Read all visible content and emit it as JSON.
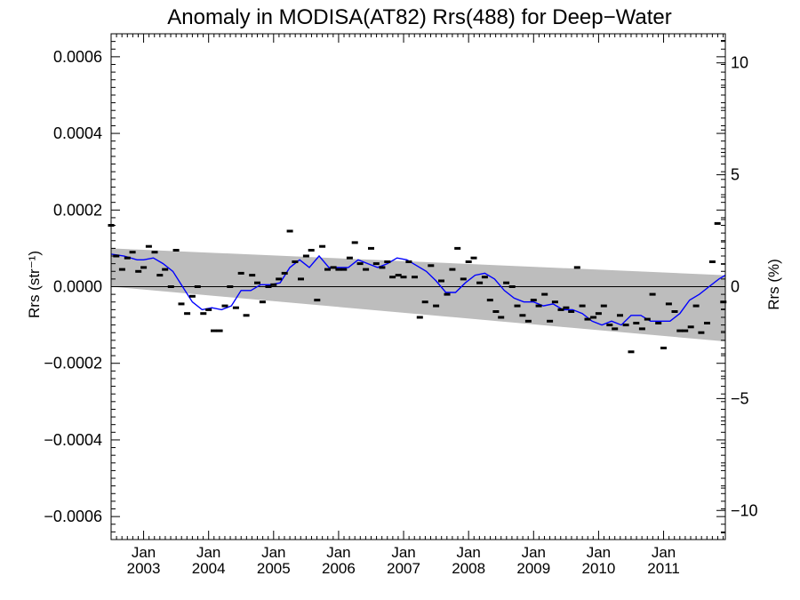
{
  "chart_data": {
    "type": "scatter",
    "title": "Anomaly in MODISA(AT82) Rrs(488) for Deep−Water",
    "ylabel_left": "Rrs (str⁻¹)",
    "ylabel_right": "Rrs (%)",
    "xlim": [
      2002.5,
      2011.95
    ],
    "ylim_left": [
      -0.00066,
      0.00066
    ],
    "ylim_right": [
      -11.3,
      11.3
    ],
    "y_ticks_left": [
      {
        "value": -0.0006,
        "label": "−0.0006"
      },
      {
        "value": -0.0004,
        "label": "−0.0004"
      },
      {
        "value": -0.0002,
        "label": "−0.0002"
      },
      {
        "value": 0.0,
        "label": "0.0000"
      },
      {
        "value": 0.0002,
        "label": "0.0002"
      },
      {
        "value": 0.0004,
        "label": "0.0004"
      },
      {
        "value": 0.0006,
        "label": "0.0006"
      }
    ],
    "y_ticks_right": [
      {
        "value": -10,
        "label": "−10"
      },
      {
        "value": -5,
        "label": "−5"
      },
      {
        "value": 0,
        "label": "0"
      },
      {
        "value": 5,
        "label": "5"
      },
      {
        "value": 10,
        "label": "10"
      }
    ],
    "x_ticks": [
      {
        "value": 2003.0,
        "month": "Jan",
        "year": "2003"
      },
      {
        "value": 2004.0,
        "month": "Jan",
        "year": "2004"
      },
      {
        "value": 2005.0,
        "month": "Jan",
        "year": "2005"
      },
      {
        "value": 2006.0,
        "month": "Jan",
        "year": "2006"
      },
      {
        "value": 2007.0,
        "month": "Jan",
        "year": "2007"
      },
      {
        "value": 2008.0,
        "month": "Jan",
        "year": "2008"
      },
      {
        "value": 2009.0,
        "month": "Jan",
        "year": "2009"
      },
      {
        "value": 2010.0,
        "month": "Jan",
        "year": "2010"
      },
      {
        "value": 2011.0,
        "month": "Jan",
        "year": "2011"
      }
    ],
    "band": {
      "x": [
        2002.5,
        2011.95
      ],
      "upper": [
        0.0001,
        3e-05
      ],
      "lower": [
        0.0,
        -0.000143
      ]
    },
    "zero_line": 0.0,
    "series": [
      {
        "role": "monthly anomalies",
        "color": "#000000",
        "marker": "dash",
        "x": [
          2002.5,
          2002.58,
          2002.67,
          2002.75,
          2002.83,
          2002.92,
          2003.0,
          2003.08,
          2003.17,
          2003.25,
          2003.33,
          2003.42,
          2003.5,
          2003.58,
          2003.67,
          2003.75,
          2003.83,
          2003.92,
          2004.0,
          2004.08,
          2004.17,
          2004.25,
          2004.33,
          2004.42,
          2004.5,
          2004.58,
          2004.67,
          2004.75,
          2004.83,
          2004.92,
          2005.0,
          2005.08,
          2005.17,
          2005.25,
          2005.33,
          2005.42,
          2005.5,
          2005.58,
          2005.67,
          2005.75,
          2005.83,
          2005.92,
          2006.0,
          2006.08,
          2006.17,
          2006.25,
          2006.33,
          2006.42,
          2006.5,
          2006.58,
          2006.67,
          2006.75,
          2006.83,
          2006.92,
          2007.0,
          2007.08,
          2007.17,
          2007.25,
          2007.33,
          2007.42,
          2007.5,
          2007.58,
          2007.67,
          2007.75,
          2007.83,
          2007.92,
          2008.0,
          2008.08,
          2008.17,
          2008.25,
          2008.33,
          2008.42,
          2008.5,
          2008.58,
          2008.67,
          2008.75,
          2008.83,
          2008.92,
          2009.0,
          2009.08,
          2009.17,
          2009.25,
          2009.33,
          2009.42,
          2009.5,
          2009.58,
          2009.67,
          2009.75,
          2009.83,
          2009.92,
          2010.0,
          2010.08,
          2010.17,
          2010.25,
          2010.33,
          2010.42,
          2010.5,
          2010.58,
          2010.67,
          2010.75,
          2010.83,
          2010.92,
          2011.0,
          2011.08,
          2011.17,
          2011.25,
          2011.33,
          2011.42,
          2011.5,
          2011.58,
          2011.67,
          2011.75,
          2011.83,
          2011.92
        ],
        "y": [
          0.00016,
          8e-05,
          4.5e-05,
          7.5e-05,
          9e-05,
          4e-05,
          5e-05,
          0.000105,
          9e-05,
          3e-05,
          4.5e-05,
          0.0,
          9.5e-05,
          -4.5e-05,
          -7e-05,
          -2.5e-05,
          0.0,
          -7e-05,
          -6e-05,
          -0.000115,
          -0.000115,
          -5e-05,
          0.0,
          -5.5e-05,
          3.5e-05,
          -7.5e-05,
          3e-05,
          1e-05,
          -4e-05,
          0.0,
          5e-06,
          2e-05,
          3.5e-05,
          0.000145,
          6.5e-05,
          2e-05,
          8e-05,
          9.5e-05,
          -3.5e-05,
          0.000105,
          4.5e-05,
          5e-05,
          4.5e-05,
          4.5e-05,
          7.5e-05,
          0.000115,
          6e-05,
          4.5e-05,
          0.0001,
          6e-05,
          5e-05,
          6.5e-05,
          2.5e-05,
          3e-05,
          2.5e-05,
          6.5e-05,
          2.5e-05,
          -8e-05,
          -4e-05,
          5.5e-05,
          -5e-05,
          1.5e-05,
          -2e-05,
          4.5e-05,
          0.0001,
          2e-05,
          6.5e-05,
          7.5e-05,
          1e-05,
          2.5e-05,
          -3.5e-05,
          -6.5e-05,
          -8e-05,
          1e-05,
          0.0,
          -5e-05,
          -7.5e-05,
          -9e-05,
          -3.5e-05,
          -5e-05,
          -2e-05,
          -9e-05,
          -4e-05,
          -6e-05,
          -5.5e-05,
          -6.5e-05,
          5e-05,
          -5e-05,
          -8.5e-05,
          -8e-05,
          -7e-05,
          -5e-05,
          -0.0001,
          -0.00011,
          -7.5e-05,
          -0.0001,
          -0.00017,
          -9.5e-05,
          -0.00011,
          -8.5e-05,
          -2e-05,
          -9.5e-05,
          -0.00016,
          -4.5e-05,
          -6.5e-05,
          -0.000115,
          -0.000115,
          -0.000105,
          -5e-05,
          -0.00012,
          -9.5e-05,
          6.5e-05,
          0.000165,
          -4e-05
        ]
      },
      {
        "role": "running mean",
        "color": "#0000ff",
        "marker": "line",
        "x": [
          2002.5,
          2002.7,
          2002.9,
          2003.0,
          2003.15,
          2003.3,
          2003.45,
          2003.6,
          2003.75,
          2003.9,
          2004.05,
          2004.2,
          2004.35,
          2004.5,
          2004.65,
          2004.8,
          2004.95,
          2005.1,
          2005.25,
          2005.4,
          2005.55,
          2005.7,
          2005.85,
          2006.0,
          2006.15,
          2006.3,
          2006.45,
          2006.6,
          2006.75,
          2006.9,
          2007.05,
          2007.2,
          2007.35,
          2007.5,
          2007.65,
          2007.8,
          2007.95,
          2008.1,
          2008.25,
          2008.4,
          2008.55,
          2008.7,
          2008.85,
          2009.0,
          2009.15,
          2009.3,
          2009.45,
          2009.6,
          2009.75,
          2009.9,
          2010.05,
          2010.2,
          2010.35,
          2010.5,
          2010.65,
          2010.8,
          2010.95,
          2011.1,
          2011.25,
          2011.4,
          2011.55,
          2011.7,
          2011.85,
          2011.95
        ],
        "y": [
          8.5e-05,
          8e-05,
          7e-05,
          7e-05,
          7.5e-05,
          6e-05,
          4e-05,
          0.0,
          -4e-05,
          -6e-05,
          -5.5e-05,
          -6e-05,
          -5e-05,
          -1e-05,
          -1e-05,
          5e-06,
          5e-06,
          1e-05,
          5e-05,
          7e-05,
          5e-05,
          8e-05,
          5e-05,
          5e-05,
          5e-05,
          7e-05,
          6e-05,
          5e-05,
          6e-05,
          7.5e-05,
          7e-05,
          5.5e-05,
          4e-05,
          1.5e-05,
          -1.5e-05,
          -1.5e-05,
          1e-05,
          3e-05,
          3.5e-05,
          2e-05,
          -1e-05,
          -3e-05,
          -4e-05,
          -4e-05,
          -5e-05,
          -4.5e-05,
          -6e-05,
          -6e-05,
          -7e-05,
          -9e-05,
          -0.0001,
          -9e-05,
          -0.0001,
          -7.5e-05,
          -7.5e-05,
          -9e-05,
          -9e-05,
          -9e-05,
          -7e-05,
          -3.5e-05,
          -2e-05,
          0.0,
          2e-05,
          3e-05
        ]
      }
    ]
  }
}
